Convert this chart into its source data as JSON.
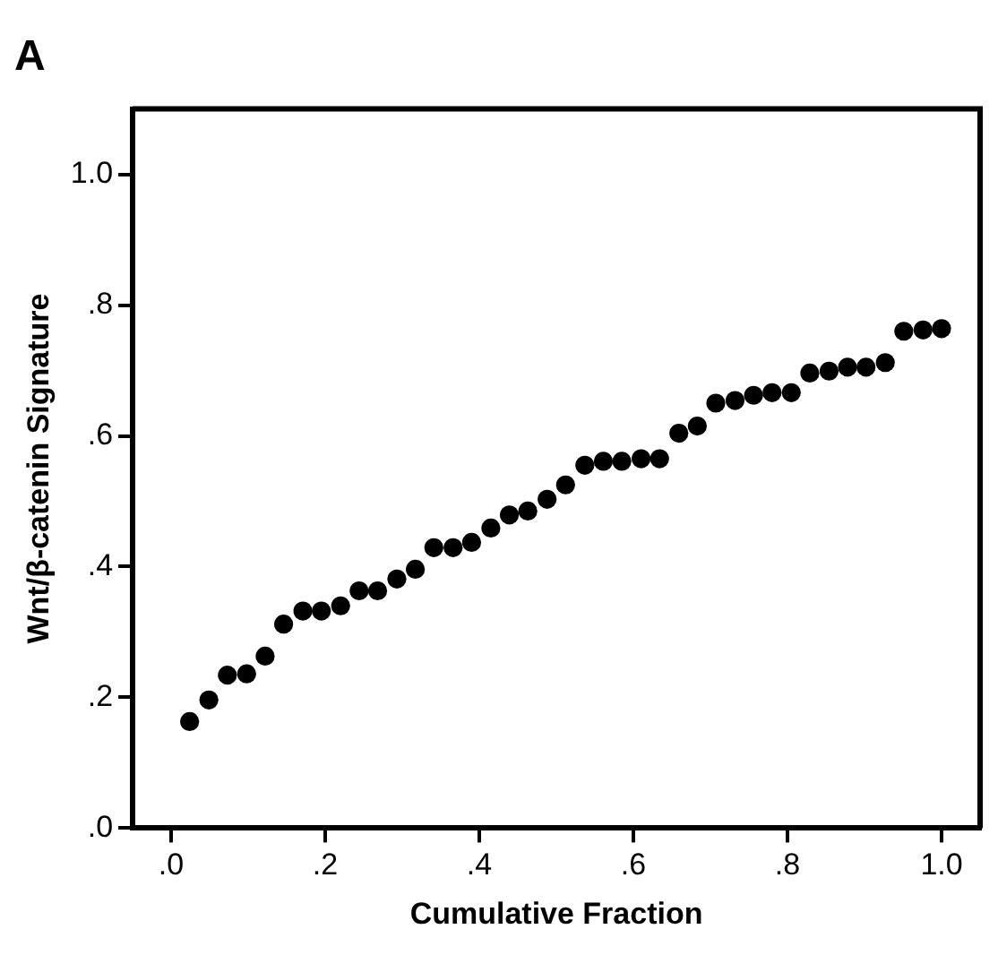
{
  "chart_data": {
    "type": "scatter",
    "title": "A",
    "xlabel": "Cumulative Fraction",
    "ylabel": "Wnt/β-catenin Signature",
    "x": [
      0.024,
      0.049,
      0.073,
      0.098,
      0.122,
      0.146,
      0.171,
      0.195,
      0.22,
      0.244,
      0.268,
      0.293,
      0.317,
      0.341,
      0.366,
      0.39,
      0.415,
      0.439,
      0.463,
      0.488,
      0.512,
      0.537,
      0.561,
      0.585,
      0.61,
      0.634,
      0.659,
      0.683,
      0.707,
      0.732,
      0.756,
      0.78,
      0.805,
      0.829,
      0.854,
      0.878,
      0.902,
      0.927,
      0.951,
      0.976,
      1.0
    ],
    "series": [
      {
        "color": "#000000",
        "values": [
          0.163,
          0.196,
          0.234,
          0.236,
          0.263,
          0.312,
          0.332,
          0.332,
          0.34,
          0.363,
          0.363,
          0.381,
          0.396,
          0.429,
          0.429,
          0.437,
          0.459,
          0.479,
          0.485,
          0.503,
          0.525,
          0.555,
          0.561,
          0.561,
          0.565,
          0.565,
          0.604,
          0.615,
          0.65,
          0.654,
          0.662,
          0.666,
          0.666,
          0.696,
          0.699,
          0.705,
          0.705,
          0.712,
          0.76,
          0.762,
          0.764
        ]
      }
    ],
    "xlim": [
      -0.05,
      1.05
    ],
    "ylim": [
      0,
      1.1
    ],
    "xticks": [
      {
        "value": 0,
        "label": ".0"
      },
      {
        "value": 0.2,
        "label": ".2"
      },
      {
        "value": 0.4,
        "label": ".4"
      },
      {
        "value": 0.6,
        "label": ".6"
      },
      {
        "value": 0.8,
        "label": ".8"
      },
      {
        "value": 1,
        "label": "1.0"
      }
    ],
    "yticks": [
      {
        "value": 0,
        "label": ".0"
      },
      {
        "value": 0.2,
        "label": ".2"
      },
      {
        "value": 0.4,
        "label": ".4"
      },
      {
        "value": 0.6,
        "label": ".6"
      },
      {
        "value": 0.8,
        "label": ".8"
      },
      {
        "value": 1,
        "label": "1.0"
      }
    ],
    "grid": false,
    "legend": false,
    "marker": "circle"
  }
}
